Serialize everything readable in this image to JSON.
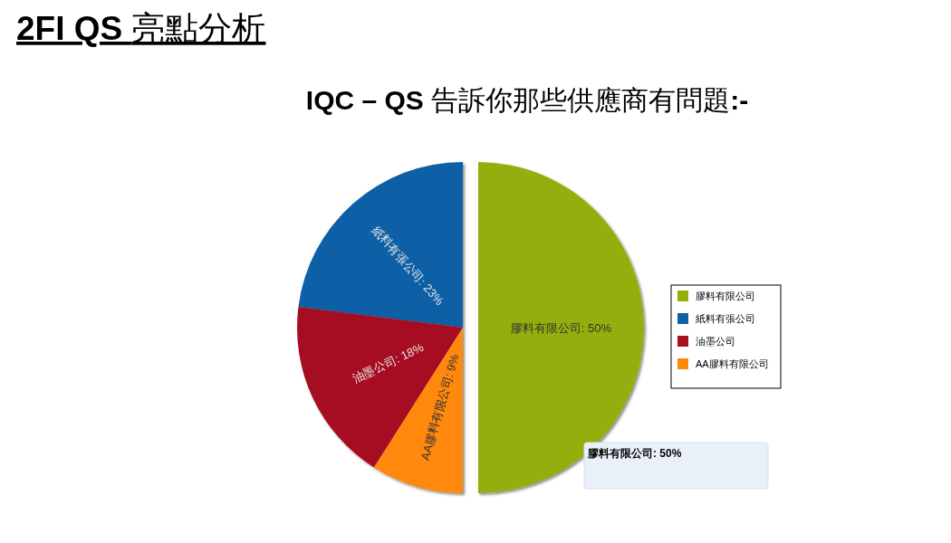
{
  "chart_data": {
    "type": "pie",
    "title": "2FI QS 亮點分析",
    "subtitle": "IQC – QS 告訴你那些供應商有問題:-",
    "categories": [
      "膠料有限公司",
      "紙料有張公司",
      "油墨公司",
      "AA膠料有限公司"
    ],
    "values": [
      50,
      23,
      18,
      9
    ],
    "colors": [
      "#94ae0a",
      "#115fa6",
      "#a61120",
      "#ff8809"
    ],
    "value_labels": [
      "膠料有限公司: 50%",
      "紙料有張公司: 23%",
      "油墨公司: 18%",
      "AA膠料有限公司: 9%"
    ],
    "legend": "right",
    "annotations": [
      "膠料有限公司: 50%"
    ]
  }
}
